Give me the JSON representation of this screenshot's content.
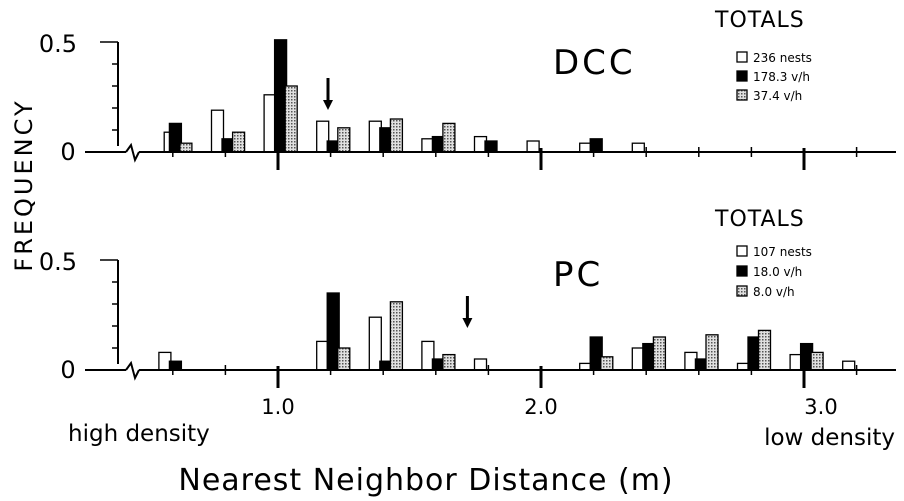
{
  "figure": {
    "ylabel": "FREQUENCY",
    "xlabel": "Nearest Neighbor Distance (m)",
    "x_ticks": [
      "1.0",
      "2.0",
      "3.0"
    ],
    "note_left": "high density",
    "note_right": "low density"
  },
  "chart_data": [
    {
      "type": "bar",
      "panel_label": "DCC",
      "totals_heading": "TOTALS",
      "ylim": [
        0,
        0.5
      ],
      "y_ticks": [
        "0",
        "0.5"
      ],
      "xlim": [
        0.4,
        3.3
      ],
      "x_ticks": [
        1.0,
        2.0,
        3.0
      ],
      "arrow_x": 1.19,
      "series": [
        {
          "name": "236 nests",
          "fill": "#ffffff",
          "points": [
            [
              0.59,
              0.09
            ],
            [
              0.77,
              0.19
            ],
            [
              0.97,
              0.26
            ],
            [
              1.17,
              0.14
            ],
            [
              1.37,
              0.14
            ],
            [
              1.57,
              0.06
            ],
            [
              1.77,
              0.07
            ],
            [
              1.97,
              0.05
            ],
            [
              2.17,
              0.04
            ],
            [
              2.37,
              0.04
            ]
          ]
        },
        {
          "name": "178.3 v/h",
          "fill": "#000000",
          "points": [
            [
              0.61,
              0.13
            ],
            [
              0.81,
              0.06
            ],
            [
              1.01,
              0.51
            ],
            [
              1.21,
              0.05
            ],
            [
              1.41,
              0.11
            ],
            [
              1.61,
              0.07
            ],
            [
              1.81,
              0.05
            ],
            [
              2.21,
              0.06
            ]
          ]
        },
        {
          "name": "37.4 v/h",
          "fill": "#b0b0b0",
          "points": [
            [
              0.65,
              0.04
            ],
            [
              0.85,
              0.09
            ],
            [
              1.05,
              0.3
            ],
            [
              1.25,
              0.11
            ],
            [
              1.45,
              0.15
            ],
            [
              1.65,
              0.13
            ]
          ]
        }
      ]
    },
    {
      "type": "bar",
      "panel_label": "PC",
      "totals_heading": "TOTALS",
      "ylim": [
        0,
        0.5
      ],
      "y_ticks": [
        "0",
        "0.5"
      ],
      "xlim": [
        0.4,
        3.3
      ],
      "x_ticks": [
        1.0,
        2.0,
        3.0
      ],
      "arrow_x": 1.72,
      "series": [
        {
          "name": "107 nests",
          "fill": "#ffffff",
          "points": [
            [
              0.57,
              0.08
            ],
            [
              1.17,
              0.13
            ],
            [
              1.37,
              0.24
            ],
            [
              1.57,
              0.13
            ],
            [
              1.77,
              0.05
            ],
            [
              2.17,
              0.03
            ],
            [
              2.37,
              0.1
            ],
            [
              2.57,
              0.08
            ],
            [
              2.77,
              0.03
            ],
            [
              2.97,
              0.07
            ],
            [
              3.17,
              0.04
            ]
          ]
        },
        {
          "name": "18.0 v/h",
          "fill": "#000000",
          "points": [
            [
              0.61,
              0.04
            ],
            [
              1.21,
              0.35
            ],
            [
              1.41,
              0.04
            ],
            [
              1.61,
              0.05
            ],
            [
              2.21,
              0.15
            ],
            [
              2.41,
              0.12
            ],
            [
              2.61,
              0.05
            ],
            [
              2.81,
              0.15
            ],
            [
              3.01,
              0.12
            ]
          ]
        },
        {
          "name": "8.0 v/h",
          "fill": "#b0b0b0",
          "points": [
            [
              1.25,
              0.1
            ],
            [
              1.45,
              0.31
            ],
            [
              1.65,
              0.07
            ],
            [
              2.25,
              0.06
            ],
            [
              2.45,
              0.15
            ],
            [
              2.65,
              0.16
            ],
            [
              2.85,
              0.18
            ],
            [
              3.05,
              0.08
            ]
          ]
        }
      ]
    }
  ]
}
